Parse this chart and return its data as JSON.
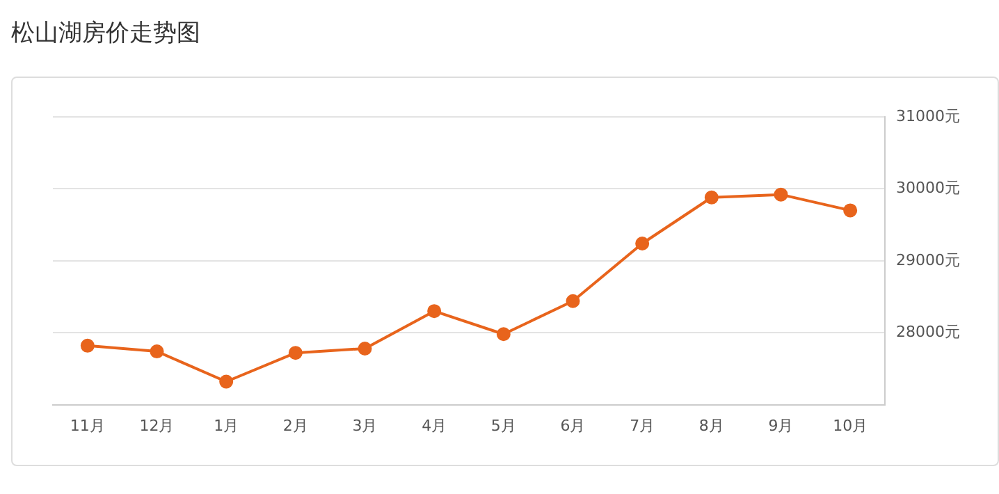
{
  "chart_data": {
    "type": "line",
    "title": "松山湖房价走势图",
    "categories": [
      "11月",
      "12月",
      "1月",
      "2月",
      "3月",
      "4月",
      "5月",
      "6月",
      "7月",
      "8月",
      "9月",
      "10月"
    ],
    "series": [
      {
        "color": "#e8641c",
        "values": [
          27820,
          27740,
          27320,
          27720,
          27780,
          28300,
          27980,
          28440,
          29240,
          29880,
          29920,
          29700
        ]
      }
    ],
    "ylim": [
      27000,
      31000
    ],
    "yticks": [
      {
        "value": 28000,
        "label": "28000元"
      },
      {
        "value": 29000,
        "label": "29000元"
      },
      {
        "value": 30000,
        "label": "30000元"
      },
      {
        "value": 31000,
        "label": "31000元"
      }
    ],
    "grid": "y",
    "legend": false,
    "marker": "circle",
    "line_style": "solid"
  }
}
